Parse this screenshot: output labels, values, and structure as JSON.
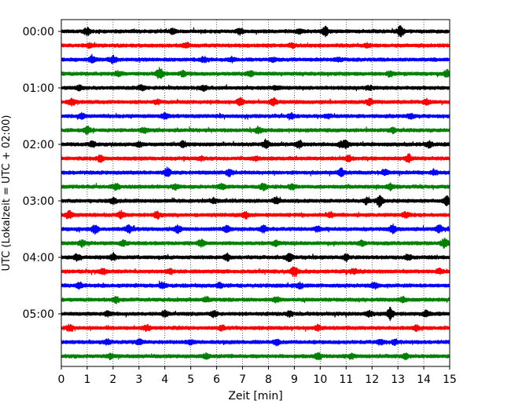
{
  "chart_data": {
    "type": "line",
    "title": "",
    "xlabel": "Zeit  [min]",
    "ylabel": "UTC (Lokalzeit = UTC + 02:00)",
    "xlim": [
      0,
      15
    ],
    "x_ticks": [
      0,
      1,
      2,
      3,
      4,
      5,
      6,
      7,
      8,
      9,
      10,
      11,
      12,
      13,
      14,
      15
    ],
    "y_tick_labels": [
      "00:00",
      "01:00",
      "02:00",
      "03:00",
      "04:00",
      "05:00"
    ],
    "trace_minutes": 15,
    "grid": "vertical dotted",
    "legend": "none",
    "trace_colors": [
      "#000000",
      "#ff0000",
      "#0000ff",
      "#008000"
    ],
    "series": [
      {
        "start": "00:00",
        "color": "#000000",
        "events": [
          [
            1.0,
            0.6
          ],
          [
            4.3,
            0.4
          ],
          [
            6.9,
            0.5
          ],
          [
            9.2,
            0.4
          ],
          [
            10.2,
            0.8
          ],
          [
            13.1,
            1.0
          ]
        ]
      },
      {
        "start": "00:15",
        "color": "#ff0000",
        "events": [
          [
            1.1,
            0.3
          ],
          [
            4.8,
            0.3
          ],
          [
            8.9,
            0.3
          ],
          [
            11.8,
            0.3
          ]
        ]
      },
      {
        "start": "00:30",
        "color": "#0000ff",
        "events": [
          [
            1.2,
            0.6
          ],
          [
            2.0,
            0.5
          ],
          [
            5.5,
            0.4
          ],
          [
            6.6,
            0.3
          ],
          [
            8.2,
            0.3
          ],
          [
            10.7,
            0.3
          ]
        ]
      },
      {
        "start": "00:45",
        "color": "#008000",
        "events": [
          [
            2.2,
            0.4
          ],
          [
            3.8,
            1.0
          ],
          [
            4.7,
            0.4
          ],
          [
            7.3,
            0.4
          ],
          [
            12.7,
            0.4
          ],
          [
            14.9,
            0.6
          ]
        ]
      },
      {
        "start": "01:00",
        "color": "#000000",
        "events": [
          [
            0.7,
            0.3
          ],
          [
            3.1,
            0.4
          ],
          [
            5.5,
            0.4
          ],
          [
            8.3,
            0.3
          ],
          [
            11.9,
            0.3
          ]
        ]
      },
      {
        "start": "01:15",
        "color": "#ff0000",
        "events": [
          [
            0.4,
            0.6
          ],
          [
            3.7,
            0.4
          ],
          [
            6.9,
            0.6
          ],
          [
            8.2,
            0.7
          ],
          [
            11.9,
            0.5
          ],
          [
            14.1,
            0.4
          ]
        ]
      },
      {
        "start": "01:30",
        "color": "#0000ff",
        "events": [
          [
            0.8,
            0.4
          ],
          [
            4.0,
            0.4
          ],
          [
            8.9,
            0.4
          ],
          [
            10.3,
            0.3
          ],
          [
            13.5,
            0.4
          ]
        ]
      },
      {
        "start": "01:45",
        "color": "#008000",
        "events": [
          [
            1.0,
            0.6
          ],
          [
            3.2,
            0.4
          ],
          [
            7.6,
            0.5
          ],
          [
            12.8,
            0.4
          ]
        ]
      },
      {
        "start": "02:00",
        "color": "#000000",
        "events": [
          [
            1.2,
            0.4
          ],
          [
            3.0,
            0.4
          ],
          [
            4.7,
            0.6
          ],
          [
            7.9,
            0.7
          ],
          [
            9.2,
            0.6
          ],
          [
            10.8,
            0.4
          ],
          [
            11.0,
            0.5
          ],
          [
            14.2,
            0.5
          ]
        ]
      },
      {
        "start": "02:15",
        "color": "#ff0000",
        "events": [
          [
            1.5,
            0.5
          ],
          [
            5.4,
            0.3
          ],
          [
            7.5,
            0.3
          ],
          [
            11.1,
            0.4
          ],
          [
            13.4,
            0.6
          ]
        ]
      },
      {
        "start": "02:30",
        "color": "#0000ff",
        "events": [
          [
            4.1,
            0.8
          ],
          [
            6.5,
            0.5
          ],
          [
            10.8,
            0.7
          ],
          [
            12.5,
            0.4
          ],
          [
            14.4,
            0.4
          ]
        ]
      },
      {
        "start": "02:45",
        "color": "#008000",
        "events": [
          [
            2.1,
            0.6
          ],
          [
            4.4,
            0.4
          ],
          [
            6.2,
            0.4
          ],
          [
            7.8,
            0.5
          ],
          [
            8.9,
            0.4
          ],
          [
            12.7,
            0.5
          ]
        ]
      },
      {
        "start": "03:00",
        "color": "#000000",
        "events": [
          [
            2.0,
            0.5
          ],
          [
            5.9,
            0.4
          ],
          [
            8.3,
            0.6
          ],
          [
            11.8,
            0.5
          ],
          [
            12.3,
            1.0
          ],
          [
            14.9,
            0.7
          ]
        ]
      },
      {
        "start": "03:15",
        "color": "#ff0000",
        "events": [
          [
            0.3,
            0.7
          ],
          [
            2.3,
            0.6
          ],
          [
            3.7,
            0.6
          ],
          [
            7.1,
            0.5
          ],
          [
            10.4,
            0.4
          ],
          [
            13.3,
            0.5
          ]
        ]
      },
      {
        "start": "03:30",
        "color": "#0000ff",
        "events": [
          [
            1.3,
            0.8
          ],
          [
            2.6,
            0.6
          ],
          [
            4.5,
            0.6
          ],
          [
            6.4,
            0.5
          ],
          [
            7.8,
            0.5
          ],
          [
            9.9,
            0.4
          ],
          [
            12.8,
            0.7
          ],
          [
            14.6,
            0.6
          ]
        ]
      },
      {
        "start": "03:45",
        "color": "#008000",
        "events": [
          [
            0.8,
            0.5
          ],
          [
            2.4,
            0.4
          ],
          [
            5.4,
            0.6
          ],
          [
            8.3,
            0.4
          ],
          [
            11.6,
            0.4
          ],
          [
            14.8,
            0.8
          ]
        ]
      },
      {
        "start": "04:00",
        "color": "#000000",
        "events": [
          [
            0.6,
            0.5
          ],
          [
            2.0,
            0.5
          ],
          [
            6.4,
            0.5
          ],
          [
            8.8,
            0.7
          ],
          [
            11.0,
            0.5
          ],
          [
            13.4,
            0.4
          ]
        ]
      },
      {
        "start": "04:15",
        "color": "#ff0000",
        "events": [
          [
            1.6,
            0.5
          ],
          [
            4.2,
            0.4
          ],
          [
            9.0,
            0.9
          ],
          [
            11.3,
            0.4
          ],
          [
            14.6,
            0.4
          ]
        ]
      },
      {
        "start": "04:30",
        "color": "#0000ff",
        "events": [
          [
            0.7,
            0.4
          ],
          [
            3.9,
            0.5
          ],
          [
            6.1,
            0.4
          ],
          [
            9.2,
            0.4
          ],
          [
            12.1,
            0.5
          ]
        ]
      },
      {
        "start": "04:45",
        "color": "#008000",
        "events": [
          [
            2.1,
            0.5
          ],
          [
            5.6,
            0.4
          ],
          [
            8.3,
            0.4
          ],
          [
            13.2,
            0.4
          ]
        ]
      },
      {
        "start": "05:00",
        "color": "#000000",
        "events": [
          [
            1.8,
            0.4
          ],
          [
            4.0,
            0.5
          ],
          [
            5.9,
            0.5
          ],
          [
            8.8,
            0.4
          ],
          [
            11.9,
            0.4
          ],
          [
            12.7,
            1.0
          ],
          [
            14.1,
            0.5
          ]
        ]
      },
      {
        "start": "05:15",
        "color": "#ff0000",
        "events": [
          [
            0.3,
            0.5
          ],
          [
            3.3,
            0.4
          ],
          [
            6.2,
            0.4
          ],
          [
            9.9,
            0.4
          ],
          [
            13.7,
            0.4
          ]
        ]
      },
      {
        "start": "05:30",
        "color": "#0000ff",
        "events": [
          [
            1.8,
            0.4
          ],
          [
            3.0,
            0.4
          ],
          [
            5.0,
            0.4
          ],
          [
            8.3,
            0.4
          ],
          [
            12.3,
            0.4
          ],
          [
            12.9,
            0.4
          ]
        ]
      },
      {
        "start": "05:45",
        "color": "#008000",
        "events": [
          [
            1.9,
            0.4
          ],
          [
            5.6,
            0.4
          ],
          [
            9.9,
            0.5
          ],
          [
            11.2,
            0.4
          ],
          [
            13.3,
            0.4
          ]
        ]
      }
    ]
  }
}
